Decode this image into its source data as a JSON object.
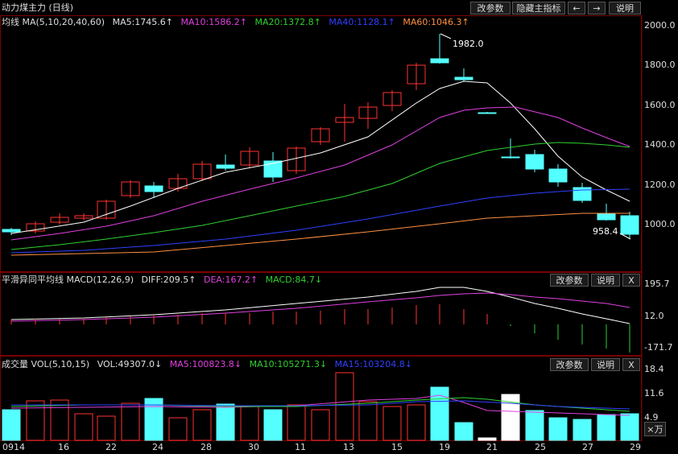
{
  "main": {
    "title": "动力煤主力 (日线)",
    "ma_label": "均线 MA(5,10,20,40,60)",
    "ma_values": [
      {
        "text": "MA5:1745.6↑",
        "color": "#e0e0e0"
      },
      {
        "text": "MA10:1586.2↑",
        "color": "#e040e0"
      },
      {
        "text": "MA20:1372.8↑",
        "color": "#30d030"
      },
      {
        "text": "MA40:1128.1↑",
        "color": "#3040ff"
      },
      {
        "text": "MA60:1046.3↑",
        "color": "#ff9040"
      }
    ],
    "buttons": {
      "params": "改参数",
      "hide": "隐藏主指标",
      "prev": "←",
      "next": "→",
      "help": "说明"
    },
    "y_ticks": [
      "2000.0",
      "1800.0",
      "1600.0",
      "1400.0",
      "1200.0",
      "1000.0"
    ],
    "high_annotation": "1982.0",
    "low_annotation": "958.4"
  },
  "macd": {
    "label": "平滑异同平均线 MACD(12,26,9)",
    "values": [
      {
        "text": "DIFF:209.5↑",
        "color": "#e0e0e0"
      },
      {
        "text": "DEA:167.2↑",
        "color": "#e040e0"
      },
      {
        "text": "MACD:84.7↓",
        "color": "#30d030"
      }
    ],
    "buttons": {
      "params": "改参数",
      "help": "说明",
      "close": "X"
    },
    "y_ticks": [
      "195.7",
      "12.0",
      "-171.7"
    ]
  },
  "volume": {
    "label": "成交量 VOL(5,10,15)",
    "values": [
      {
        "text": "VOL:49307.0↓",
        "color": "#e0e0e0"
      },
      {
        "text": "MA5:100823.8↓",
        "color": "#e040e0"
      },
      {
        "text": "MA10:105271.3↓",
        "color": "#30d030"
      },
      {
        "text": "MA15:103204.8↓",
        "color": "#3040ff"
      }
    ],
    "buttons": {
      "params": "改参数",
      "help": "说明",
      "close": "X"
    },
    "y_ticks": [
      "18.4",
      "11.6",
      "4.9"
    ],
    "unit": "×万"
  },
  "x_axis": [
    "0914",
    "16",
    "22",
    "24",
    "28",
    "30",
    "11",
    "13",
    "15",
    "19",
    "21",
    "25",
    "27",
    "29"
  ],
  "colors": {
    "up": "#ff3232",
    "down": "#54ffff",
    "frame": "#7a0000"
  }
}
